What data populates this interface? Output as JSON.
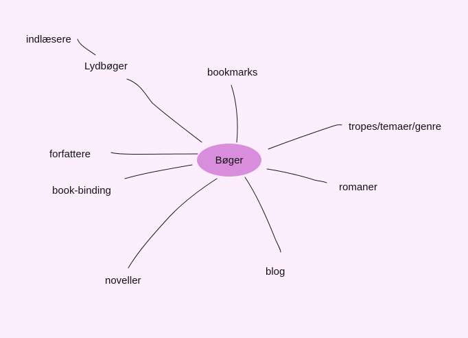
{
  "diagram": {
    "type": "mind-map",
    "center": {
      "label": "Bøger",
      "color": "#d88edc"
    },
    "background": "#fdeefd",
    "branches": [
      {
        "id": "lydboger",
        "label": "Lydbøger",
        "children": [
          {
            "id": "indlaesere",
            "label": "indlæsere"
          }
        ]
      },
      {
        "id": "bookmarks",
        "label": "bookmarks"
      },
      {
        "id": "tropes",
        "label": "tropes/temaer/genre"
      },
      {
        "id": "forfattere",
        "label": "forfattere"
      },
      {
        "id": "bookbinding",
        "label": "book-binding"
      },
      {
        "id": "romaner",
        "label": "romaner"
      },
      {
        "id": "blog",
        "label": "blog"
      },
      {
        "id": "noveller",
        "label": "noveller"
      }
    ]
  }
}
